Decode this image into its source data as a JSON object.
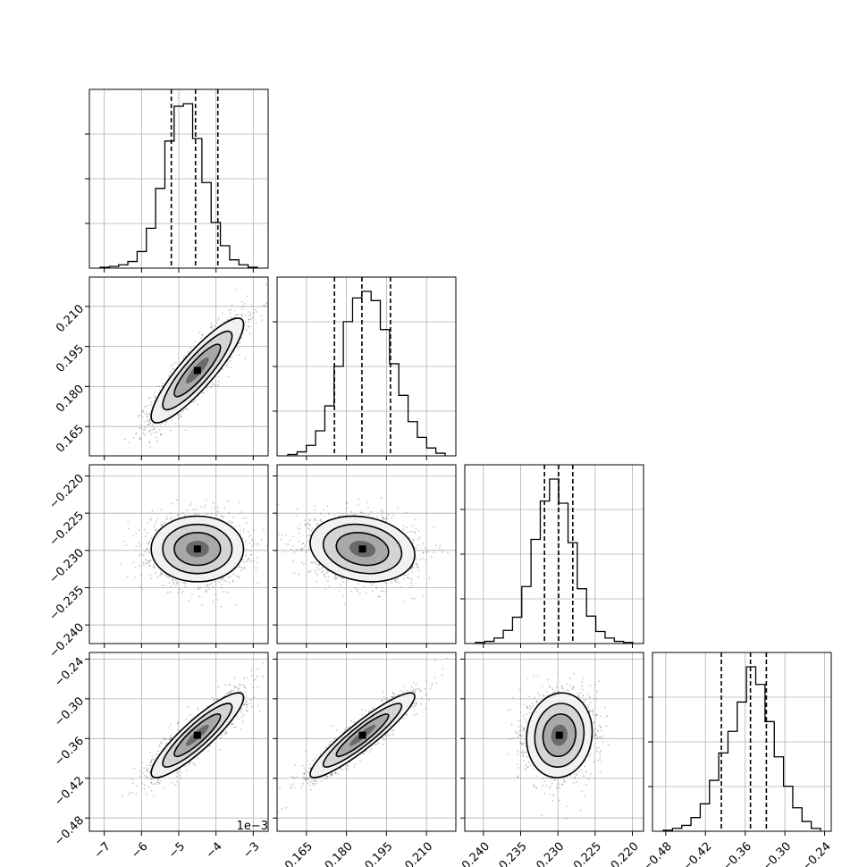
{
  "chart_data": {
    "type": "corner",
    "grid": true,
    "parameters": [
      {
        "ticks": [
          -7,
          -6,
          -5,
          -4,
          -3
        ],
        "tick_labels": [
          "−7",
          "−6",
          "−5",
          "−4",
          "−3"
        ],
        "range": [
          -7.4,
          -2.6
        ],
        "offset_label": "1e−3"
      },
      {
        "ticks": [
          0.165,
          0.18,
          0.195,
          0.21
        ],
        "tick_labels": [
          "0.165",
          "0.180",
          "0.195",
          "0.210"
        ],
        "range": [
          0.154,
          0.221
        ],
        "offset_label": ""
      },
      {
        "ticks": [
          -0.24,
          -0.235,
          -0.23,
          -0.225,
          -0.22
        ],
        "tick_labels": [
          "−0.240",
          "−0.235",
          "−0.230",
          "−0.225",
          "−0.220"
        ],
        "range": [
          -0.2425,
          -0.2185
        ],
        "offset_label": ""
      },
      {
        "ticks": [
          -0.48,
          -0.42,
          -0.36,
          -0.3,
          -0.24
        ],
        "tick_labels": [
          "−0.48",
          "−0.42",
          "−0.36",
          "−0.30",
          "−0.24"
        ],
        "range": [
          -0.5,
          -0.23
        ],
        "offset_label": ""
      }
    ],
    "histograms": [
      {
        "counts": [
          1,
          2,
          4,
          8,
          20,
          48,
          96,
          153,
          195,
          198,
          156,
          103,
          55,
          27,
          10,
          4,
          1
        ],
        "quantiles": [
          -5.2,
          -4.55,
          -3.95
        ]
      },
      {
        "counts": [
          1,
          3,
          8,
          19,
          38,
          68,
          102,
          120,
          125,
          118,
          96,
          70,
          46,
          26,
          14,
          6,
          2
        ],
        "quantiles": [
          0.1755,
          0.1858,
          0.1965
        ]
      },
      {
        "counts": [
          1,
          2,
          5,
          12,
          24,
          52,
          95,
          130,
          150,
          128,
          92,
          50,
          25,
          11,
          5,
          2,
          1
        ],
        "quantiles": [
          -0.2318,
          -0.2299,
          -0.228
        ]
      },
      {
        "counts": [
          1,
          3,
          6,
          14,
          28,
          52,
          80,
          102,
          132,
          168,
          150,
          112,
          76,
          46,
          24,
          10,
          3
        ],
        "quantiles": [
          -0.396,
          -0.352,
          -0.328
        ]
      }
    ],
    "correlations": {
      "1_0": 0.88,
      "2_0": 0.0,
      "2_1": -0.18,
      "3_0": 0.89,
      "3_1": 0.92,
      "3_2": 0.08
    },
    "centers": [
      -4.5,
      0.186,
      -0.2298,
      -0.355
    ],
    "spreads": [
      0.62,
      0.0098,
      0.0022,
      0.032
    ]
  }
}
